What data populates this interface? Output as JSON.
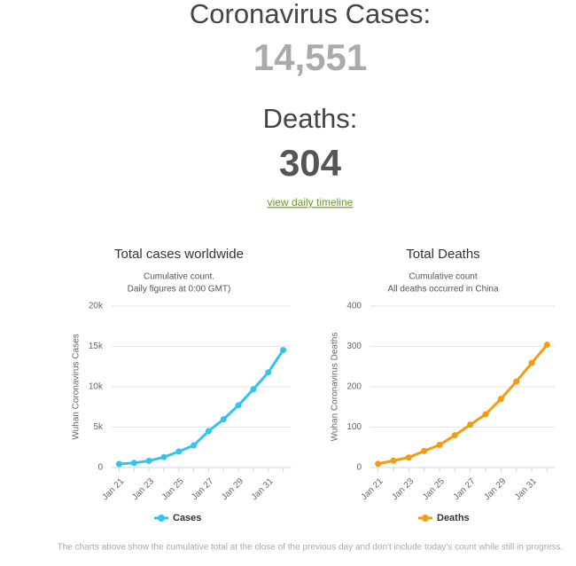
{
  "header": {
    "cases_label": "Coronavirus Cases:",
    "cases_value": "14,551",
    "deaths_label": "Deaths:",
    "deaths_value": "304",
    "link": "view daily timeline"
  },
  "footer": "The charts above show the cumulative total at the close of the previous day and don't include today's count while still in progress.",
  "chart_data": [
    {
      "type": "line",
      "title": "Total cases worldwide",
      "subtitle": [
        "Cumulative count.",
        "Daily figures at 0:00 GMT)"
      ],
      "y_label": "Wuhan Coronavirus Cases",
      "categories": [
        "Jan 21",
        null,
        "Jan 23",
        null,
        "Jan 25",
        null,
        "Jan 27",
        null,
        "Jan 29",
        null,
        "Jan 31",
        null
      ],
      "series": [
        {
          "name": "Cases",
          "color": "#33c3ef",
          "values": [
            440,
            571,
            830,
            1287,
            1975,
            2744,
            4515,
            5974,
            7711,
            9692,
            11791,
            14551
          ]
        }
      ],
      "ylim": [
        0,
        20000
      ],
      "yticks": [
        0,
        {
          "value": 5000,
          "label": "5k"
        },
        {
          "value": 10000,
          "label": "10k"
        },
        {
          "value": 15000,
          "label": "15k"
        },
        {
          "value": 20000,
          "label": "20k"
        }
      ],
      "grid": true,
      "legend": "bottom"
    },
    {
      "type": "line",
      "title": "Total Deaths",
      "subtitle": [
        "Cumulative count",
        "All deaths occurred in China"
      ],
      "y_label": "Wuhan Coronavirus Deaths",
      "categories": [
        "Jan 21",
        null,
        "Jan 23",
        null,
        "Jan 25",
        null,
        "Jan 27",
        null,
        "Jan 29",
        null,
        "Jan 31",
        null
      ],
      "series": [
        {
          "name": "Deaths",
          "color": "#f39c12",
          "values": [
            9,
            17,
            25,
            41,
            56,
            80,
            106,
            132,
            170,
            213,
            259,
            304
          ]
        }
      ],
      "ylim": [
        0,
        400
      ],
      "yticks": [
        0,
        100,
        200,
        300,
        400
      ],
      "grid": true,
      "legend": "bottom"
    }
  ]
}
